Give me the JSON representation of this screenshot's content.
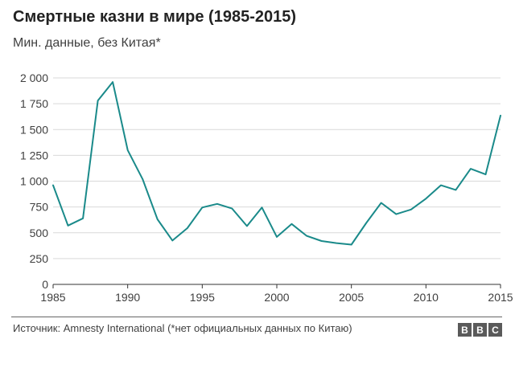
{
  "chart_data": {
    "type": "line",
    "title": "Смертные казни в мире (1985-2015)",
    "subtitle": "Мин. данные, без Китая*",
    "xlabel": "",
    "ylabel": "",
    "xlim": [
      1985,
      2015
    ],
    "ylim": [
      0,
      2000
    ],
    "x_ticks": [
      1985,
      1990,
      1995,
      2000,
      2005,
      2010,
      2015
    ],
    "y_ticks": [
      {
        "value": 0,
        "label": "0"
      },
      {
        "value": 250,
        "label": "250"
      },
      {
        "value": 500,
        "label": "500"
      },
      {
        "value": 750,
        "label": "750"
      },
      {
        "value": 1000,
        "label": "1 000"
      },
      {
        "value": 1250,
        "label": "1 250"
      },
      {
        "value": 1500,
        "label": "1 500"
      },
      {
        "value": 1750,
        "label": "1 750"
      },
      {
        "value": 2000,
        "label": "2 000"
      }
    ],
    "grid": true,
    "series": [
      {
        "name": "Смертные казни",
        "color": "#1a8a8a",
        "x": [
          1985,
          1986,
          1987,
          1988,
          1989,
          1990,
          1991,
          1992,
          1993,
          1994,
          1995,
          1996,
          1997,
          1998,
          1999,
          2000,
          2001,
          2002,
          2003,
          2004,
          2005,
          2006,
          2007,
          2008,
          2009,
          2010,
          2011,
          2012,
          2013,
          2014,
          2015
        ],
        "values": [
          960,
          570,
          640,
          1780,
          1960,
          1300,
          1020,
          630,
          425,
          545,
          745,
          780,
          735,
          565,
          745,
          460,
          585,
          470,
          420,
          400,
          385,
          595,
          790,
          680,
          725,
          830,
          960,
          915,
          1120,
          1065,
          1635
        ]
      }
    ]
  },
  "footer": {
    "source": "Источник: Amnesty International (*нет официальных данных по Китаю)",
    "logo_letters": [
      "B",
      "B",
      "C"
    ]
  },
  "colors": {
    "line": "#1a8a8a",
    "grid": "#d9d9d9",
    "axis": "#333333",
    "logo_bg": "#5a5a5a"
  }
}
